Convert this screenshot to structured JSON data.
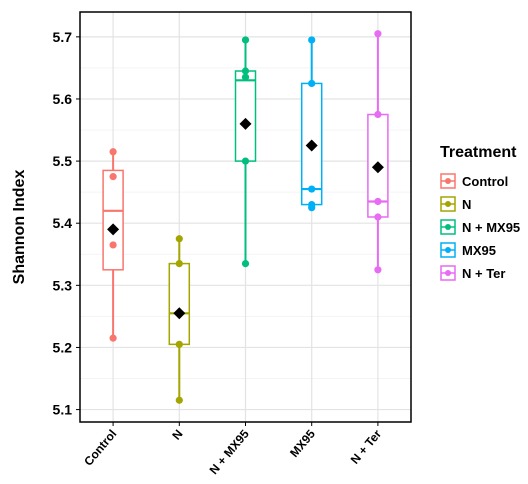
{
  "chart_data": {
    "type": "box",
    "ylabel": "Shannon Index",
    "xlabel": "",
    "ylim": [
      5.08,
      5.74
    ],
    "yticks": [
      5.1,
      5.2,
      5.3,
      5.4,
      5.5,
      5.6,
      5.7
    ],
    "grid": true,
    "legend": {
      "title": "Treatment",
      "position": "right"
    },
    "categories": [
      "Control",
      "N",
      "N + MX95",
      "MX95",
      "N + Ter"
    ],
    "series": [
      {
        "name": "Control",
        "color": "#F8766D",
        "min": 5.215,
        "q1": 5.325,
        "median": 5.42,
        "q3": 5.485,
        "max": 5.515,
        "mean": 5.39,
        "points": [
          5.515,
          5.475,
          5.365,
          5.215
        ]
      },
      {
        "name": "N",
        "color": "#A3A500",
        "min": 5.115,
        "q1": 5.205,
        "median": 5.255,
        "q3": 5.335,
        "max": 5.375,
        "mean": 5.255,
        "points": [
          5.375,
          5.335,
          5.255,
          5.205,
          5.115
        ]
      },
      {
        "name": "N + MX95",
        "color": "#00BF7D",
        "min": 5.335,
        "q1": 5.5,
        "median": 5.63,
        "q3": 5.645,
        "max": 5.695,
        "mean": 5.56,
        "points": [
          5.695,
          5.645,
          5.635,
          5.5,
          5.335
        ]
      },
      {
        "name": "MX95",
        "color": "#00B0F6",
        "min": 5.425,
        "q1": 5.43,
        "median": 5.455,
        "q3": 5.625,
        "max": 5.695,
        "mean": 5.525,
        "points": [
          5.695,
          5.625,
          5.455,
          5.43,
          5.425
        ]
      },
      {
        "name": "N + Ter",
        "color": "#E76BF3",
        "min": 5.325,
        "q1": 5.41,
        "median": 5.435,
        "q3": 5.575,
        "max": 5.705,
        "mean": 5.49,
        "points": [
          5.705,
          5.575,
          5.435,
          5.41,
          5.325
        ]
      }
    ]
  }
}
